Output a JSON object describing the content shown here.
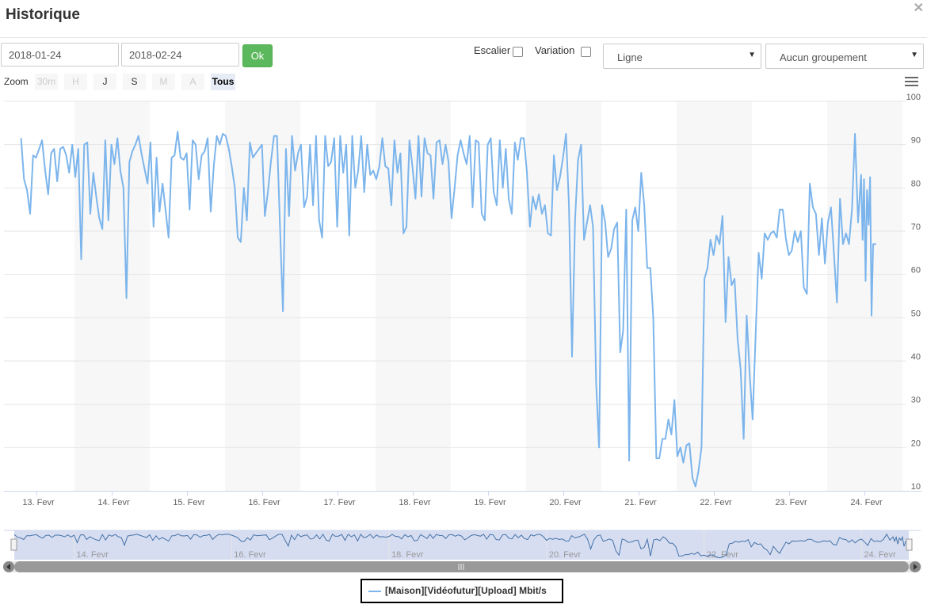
{
  "dialog": {
    "title": "Historique",
    "close_symbol": "✕"
  },
  "controls": {
    "date_start": "2018-01-24",
    "date_end": "2018-02-24",
    "ok_label": "Ok",
    "escalier_label": "Escalier",
    "escalier_checked": false,
    "variation_label": "Variation",
    "variation_checked": false,
    "chart_type_selected": "Ligne",
    "grouping_selected": "Aucun groupement"
  },
  "zoom": {
    "label": "Zoom",
    "buttons": [
      {
        "label": "30m",
        "state": "disabled"
      },
      {
        "label": "H",
        "state": "disabled"
      },
      {
        "label": "J",
        "state": "enabled"
      },
      {
        "label": "S",
        "state": "enabled"
      },
      {
        "label": "M",
        "state": "disabled"
      },
      {
        "label": "A",
        "state": "disabled"
      },
      {
        "label": "Tous",
        "state": "active"
      }
    ]
  },
  "icons": {
    "menu": "hamburger-menu-icon",
    "close": "close-icon",
    "scroll_left": "triangle-left-icon",
    "scroll_right": "triangle-right-icon"
  },
  "colors": {
    "series": "#7cb5ec",
    "ok_button": "#5cb85c",
    "navigator_mask": "#c8d2ec",
    "band": "#f7f7f7"
  },
  "chart_data": {
    "type": "line",
    "title": "",
    "xlabel": "",
    "ylabel": "",
    "ylim": [
      10,
      100
    ],
    "yticks": [
      10,
      20,
      30,
      40,
      50,
      60,
      70,
      80,
      90,
      100
    ],
    "xlim": [
      -0.55,
      11.55
    ],
    "xticks": [
      {
        "x": 0,
        "label": "13. Fevr"
      },
      {
        "x": 1,
        "label": "14. Fevr"
      },
      {
        "x": 2,
        "label": "15. Fevr"
      },
      {
        "x": 3,
        "label": "16. Fevr"
      },
      {
        "x": 4,
        "label": "17. Fevr"
      },
      {
        "x": 5,
        "label": "18. Fevr"
      },
      {
        "x": 6,
        "label": "19. Fevr"
      },
      {
        "x": 7,
        "label": "20. Fevr"
      },
      {
        "x": 8,
        "label": "21. Fevr"
      },
      {
        "x": 9,
        "label": "22. Fevr"
      },
      {
        "x": 10,
        "label": "23. Fevr"
      },
      {
        "x": 11,
        "label": "24. Fevr"
      }
    ],
    "navigator_ticks": [
      "14. Fevr",
      "16. Fevr",
      "18. Fevr",
      "20. Fevr",
      "22. Fevr",
      "24. Fevr"
    ],
    "grid": true,
    "legend_position": "bottom-center",
    "series": [
      {
        "name": "[Maison][Vidéofutur][Upload] Mbit/s",
        "points": [
          [
            -0.21,
            91.5
          ],
          [
            -0.17,
            82
          ],
          [
            -0.13,
            79.5
          ],
          [
            -0.09,
            74
          ],
          [
            -0.05,
            87.5
          ],
          [
            -0.01,
            87
          ],
          [
            0.03,
            89
          ],
          [
            0.07,
            91
          ],
          [
            0.11,
            84
          ],
          [
            0.15,
            78.5
          ],
          [
            0.19,
            88
          ],
          [
            0.23,
            89
          ],
          [
            0.27,
            81.5
          ],
          [
            0.31,
            89
          ],
          [
            0.35,
            89.5
          ],
          [
            0.39,
            87.5
          ],
          [
            0.43,
            83.5
          ],
          [
            0.47,
            90
          ],
          [
            0.51,
            82.5
          ],
          [
            0.55,
            89
          ],
          [
            0.59,
            63.5
          ],
          [
            0.63,
            90
          ],
          [
            0.67,
            90.5
          ],
          [
            0.71,
            74
          ],
          [
            0.75,
            83.5
          ],
          [
            0.79,
            78
          ],
          [
            0.83,
            73
          ],
          [
            0.87,
            70.5
          ],
          [
            0.91,
            91
          ],
          [
            0.95,
            72.5
          ],
          [
            0.99,
            90
          ],
          [
            1.03,
            85.5
          ],
          [
            1.07,
            91.5
          ],
          [
            1.11,
            84
          ],
          [
            1.15,
            80
          ],
          [
            1.19,
            54.5
          ],
          [
            1.23,
            86
          ],
          [
            1.27,
            88.5
          ],
          [
            1.31,
            90
          ],
          [
            1.35,
            92
          ],
          [
            1.39,
            88
          ],
          [
            1.43,
            84.5
          ],
          [
            1.47,
            81
          ],
          [
            1.51,
            90.5
          ],
          [
            1.55,
            71
          ],
          [
            1.59,
            87
          ],
          [
            1.63,
            74.5
          ],
          [
            1.67,
            81
          ],
          [
            1.71,
            75
          ],
          [
            1.75,
            68.5
          ],
          [
            1.79,
            87
          ],
          [
            1.83,
            87.5
          ],
          [
            1.87,
            93
          ],
          [
            1.91,
            87
          ],
          [
            1.95,
            86.5
          ],
          [
            1.99,
            88
          ],
          [
            2.03,
            75
          ],
          [
            2.07,
            91
          ],
          [
            2.11,
            90
          ],
          [
            2.15,
            82
          ],
          [
            2.19,
            87.5
          ],
          [
            2.23,
            88.5
          ],
          [
            2.27,
            91.5
          ],
          [
            2.31,
            74.5
          ],
          [
            2.35,
            85
          ],
          [
            2.39,
            92
          ],
          [
            2.43,
            90
          ],
          [
            2.47,
            92.5
          ],
          [
            2.51,
            92
          ],
          [
            2.55,
            89
          ],
          [
            2.59,
            85
          ],
          [
            2.63,
            80
          ],
          [
            2.67,
            68.5
          ],
          [
            2.71,
            67.5
          ],
          [
            2.75,
            80
          ],
          [
            2.79,
            72.5
          ],
          [
            2.83,
            90.5
          ],
          [
            2.87,
            87
          ],
          [
            2.91,
            88
          ],
          [
            2.95,
            89
          ],
          [
            2.99,
            90
          ],
          [
            3.03,
            73.5
          ],
          [
            3.07,
            79
          ],
          [
            3.11,
            86
          ],
          [
            3.15,
            92
          ],
          [
            3.19,
            92
          ],
          [
            3.23,
            71
          ],
          [
            3.27,
            51.5
          ],
          [
            3.31,
            89
          ],
          [
            3.35,
            73.5
          ],
          [
            3.39,
            92
          ],
          [
            3.43,
            84
          ],
          [
            3.47,
            88
          ],
          [
            3.51,
            90
          ],
          [
            3.55,
            75.5
          ],
          [
            3.59,
            78
          ],
          [
            3.63,
            90
          ],
          [
            3.67,
            76
          ],
          [
            3.71,
            92
          ],
          [
            3.75,
            72.5
          ],
          [
            3.79,
            68.5
          ],
          [
            3.83,
            92
          ],
          [
            3.87,
            85
          ],
          [
            3.91,
            86
          ],
          [
            3.95,
            91.5
          ],
          [
            3.99,
            71
          ],
          [
            4.03,
            92
          ],
          [
            4.07,
            83.5
          ],
          [
            4.11,
            90
          ],
          [
            4.15,
            69
          ],
          [
            4.19,
            92
          ],
          [
            4.23,
            80
          ],
          [
            4.27,
            84
          ],
          [
            4.31,
            92
          ],
          [
            4.35,
            79
          ],
          [
            4.39,
            90
          ],
          [
            4.43,
            83
          ],
          [
            4.47,
            84
          ],
          [
            4.51,
            82
          ],
          [
            4.55,
            85
          ],
          [
            4.59,
            91.5
          ],
          [
            4.63,
            85
          ],
          [
            4.67,
            84.5
          ],
          [
            4.71,
            76
          ],
          [
            4.75,
            91
          ],
          [
            4.79,
            83.5
          ],
          [
            4.83,
            88
          ],
          [
            4.87,
            69.5
          ],
          [
            4.91,
            71
          ],
          [
            4.95,
            91
          ],
          [
            4.99,
            85
          ],
          [
            5.03,
            77.5
          ],
          [
            5.07,
            92
          ],
          [
            5.11,
            78
          ],
          [
            5.15,
            91.5
          ],
          [
            5.19,
            88
          ],
          [
            5.23,
            87.5
          ],
          [
            5.27,
            77.5
          ],
          [
            5.31,
            90.5
          ],
          [
            5.35,
            91
          ],
          [
            5.39,
            85.5
          ],
          [
            5.43,
            90
          ],
          [
            5.47,
            86
          ],
          [
            5.51,
            73
          ],
          [
            5.55,
            80
          ],
          [
            5.59,
            87.5
          ],
          [
            5.63,
            91
          ],
          [
            5.67,
            88
          ],
          [
            5.71,
            85.5
          ],
          [
            5.75,
            92
          ],
          [
            5.79,
            75.5
          ],
          [
            5.83,
            91
          ],
          [
            5.87,
            90.5
          ],
          [
            5.91,
            74
          ],
          [
            5.95,
            72.5
          ],
          [
            5.99,
            90
          ],
          [
            6.03,
            91.5
          ],
          [
            6.07,
            79
          ],
          [
            6.11,
            76
          ],
          [
            6.15,
            91
          ],
          [
            6.19,
            80
          ],
          [
            6.23,
            89
          ],
          [
            6.27,
            77.5
          ],
          [
            6.31,
            74
          ],
          [
            6.35,
            90.5
          ],
          [
            6.39,
            86.5
          ],
          [
            6.43,
            91.5
          ],
          [
            6.47,
            91.5
          ],
          [
            6.51,
            84
          ],
          [
            6.55,
            71
          ],
          [
            6.59,
            78
          ],
          [
            6.63,
            75
          ],
          [
            6.67,
            78.5
          ],
          [
            6.71,
            74
          ],
          [
            6.75,
            76
          ],
          [
            6.79,
            69.5
          ],
          [
            6.83,
            69
          ],
          [
            6.87,
            87.5
          ],
          [
            6.91,
            79.5
          ],
          [
            6.95,
            82.5
          ],
          [
            6.99,
            87
          ],
          [
            7.03,
            92.5
          ],
          [
            7.07,
            76
          ],
          [
            7.11,
            41
          ],
          [
            7.15,
            72.5
          ],
          [
            7.19,
            86.5
          ],
          [
            7.23,
            90
          ],
          [
            7.27,
            68
          ],
          [
            7.31,
            72
          ],
          [
            7.35,
            76
          ],
          [
            7.39,
            71
          ],
          [
            7.43,
            35
          ],
          [
            7.47,
            20
          ],
          [
            7.51,
            76
          ],
          [
            7.55,
            72
          ],
          [
            7.59,
            64
          ],
          [
            7.63,
            66
          ],
          [
            7.67,
            70.5
          ],
          [
            7.71,
            72
          ],
          [
            7.75,
            42
          ],
          [
            7.79,
            47
          ],
          [
            7.83,
            75
          ],
          [
            7.87,
            17
          ],
          [
            7.91,
            72.5
          ],
          [
            7.95,
            75.5
          ],
          [
            7.99,
            70
          ],
          [
            8.03,
            83.5
          ],
          [
            8.07,
            76
          ],
          [
            8.11,
            61.5
          ],
          [
            8.15,
            61.5
          ],
          [
            8.19,
            50
          ],
          [
            8.23,
            17.5
          ],
          [
            8.27,
            17.5
          ],
          [
            8.31,
            22
          ],
          [
            8.35,
            22
          ],
          [
            8.39,
            26.5
          ],
          [
            8.43,
            23
          ],
          [
            8.47,
            31
          ],
          [
            8.51,
            18
          ],
          [
            8.55,
            20
          ],
          [
            8.59,
            16.5
          ],
          [
            8.63,
            20.5
          ],
          [
            8.67,
            21
          ],
          [
            8.71,
            13
          ],
          [
            8.75,
            11
          ],
          [
            8.79,
            14.5
          ],
          [
            8.83,
            20
          ],
          [
            8.87,
            59
          ],
          [
            8.91,
            61.5
          ],
          [
            8.95,
            68
          ],
          [
            8.99,
            64.5
          ],
          [
            9.03,
            69
          ],
          [
            9.07,
            67
          ],
          [
            9.11,
            73.5
          ],
          [
            9.15,
            49
          ],
          [
            9.19,
            64
          ],
          [
            9.23,
            57.5
          ],
          [
            9.27,
            59
          ],
          [
            9.31,
            45
          ],
          [
            9.35,
            38
          ],
          [
            9.39,
            22
          ],
          [
            9.43,
            50.5
          ],
          [
            9.47,
            37
          ],
          [
            9.51,
            26.5
          ],
          [
            9.55,
            46.5
          ],
          [
            9.59,
            65
          ],
          [
            9.63,
            59
          ],
          [
            9.67,
            69.5
          ],
          [
            9.71,
            68
          ],
          [
            9.75,
            69.5
          ],
          [
            9.79,
            70
          ],
          [
            9.83,
            68.5
          ],
          [
            9.87,
            75
          ],
          [
            9.91,
            75
          ],
          [
            9.95,
            68.5
          ],
          [
            9.99,
            64.5
          ],
          [
            10.03,
            65.5
          ],
          [
            10.07,
            70
          ],
          [
            10.11,
            67.5
          ],
          [
            10.15,
            70
          ],
          [
            10.19,
            57
          ],
          [
            10.23,
            55.5
          ],
          [
            10.27,
            81
          ],
          [
            10.31,
            75.5
          ],
          [
            10.35,
            74
          ],
          [
            10.39,
            64.5
          ],
          [
            10.43,
            73
          ],
          [
            10.47,
            62.5
          ],
          [
            10.51,
            72
          ],
          [
            10.55,
            75.5
          ],
          [
            10.59,
            65
          ],
          [
            10.63,
            53.5
          ],
          [
            10.67,
            77.5
          ],
          [
            10.71,
            67
          ],
          [
            10.75,
            69.5
          ],
          [
            10.79,
            67
          ],
          [
            10.83,
            75
          ],
          [
            10.87,
            92.5
          ],
          [
            10.91,
            72
          ],
          [
            10.95,
            83
          ],
          [
            10.97,
            68
          ],
          [
            10.99,
            82
          ],
          [
            11.01,
            58.5
          ],
          [
            11.03,
            79.5
          ],
          [
            11.05,
            71.5
          ],
          [
            11.07,
            82.5
          ],
          [
            11.09,
            50.5
          ],
          [
            11.11,
            67
          ],
          [
            11.15,
            67
          ]
        ]
      }
    ]
  },
  "legend": {
    "item": "[Maison][Vidéofutur][Upload] Mbit/s"
  }
}
